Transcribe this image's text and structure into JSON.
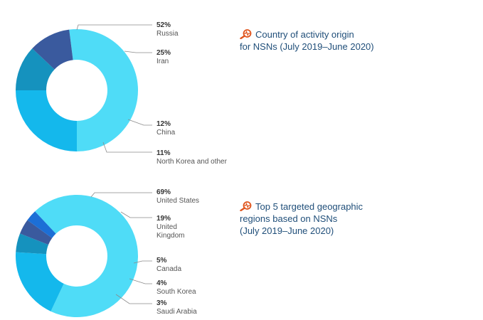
{
  "chart_data": [
    {
      "type": "pie",
      "variant": "donut",
      "title": "Country of activity origin for NSNs (July 2019–June 2020)",
      "title_lines": [
        "Country of activity origin",
        "for NSNs (July 2019–June 2020)"
      ],
      "series": [
        {
          "label": "Russia",
          "value": 52,
          "display": "52%",
          "color": "#4fdcf7"
        },
        {
          "label": "Iran",
          "value": 25,
          "display": "25%",
          "color": "#14b8ec"
        },
        {
          "label": "China",
          "value": 12,
          "display": "12%",
          "color": "#1592be"
        },
        {
          "label": "North Korea and other",
          "value": 11,
          "display": "11%",
          "color": "#3a5a9e"
        }
      ]
    },
    {
      "type": "pie",
      "variant": "donut",
      "title": "Top 5 targeted geographic regions based on NSNs (July 2019–June 2020)",
      "title_lines": [
        "Top 5 targeted geographic",
        "regions based on NSNs",
        "(July 2019–June 2020)"
      ],
      "series": [
        {
          "label": "United States",
          "label_lines": [
            "United States"
          ],
          "value": 69,
          "display": "69%",
          "color": "#4fdcf7"
        },
        {
          "label": "United Kingdom",
          "label_lines": [
            "United",
            "Kingdom"
          ],
          "value": 19,
          "display": "19%",
          "color": "#14b8ec"
        },
        {
          "label": "Canada",
          "label_lines": [
            "Canada"
          ],
          "value": 5,
          "display": "5%",
          "color": "#1592be"
        },
        {
          "label": "South Korea",
          "label_lines": [
            "South Korea"
          ],
          "value": 4,
          "display": "4%",
          "color": "#3a5a9e"
        },
        {
          "label": "Saudi Arabia",
          "label_lines": [
            "Saudi Arabia"
          ],
          "value": 3,
          "display": "3%",
          "color": "#1c6fd6"
        }
      ]
    }
  ],
  "icon": "magnifier-pulse-icon",
  "colors": {
    "accent": "#e0561f",
    "title": "#1f4e79",
    "leader": "#8a8a8a"
  }
}
